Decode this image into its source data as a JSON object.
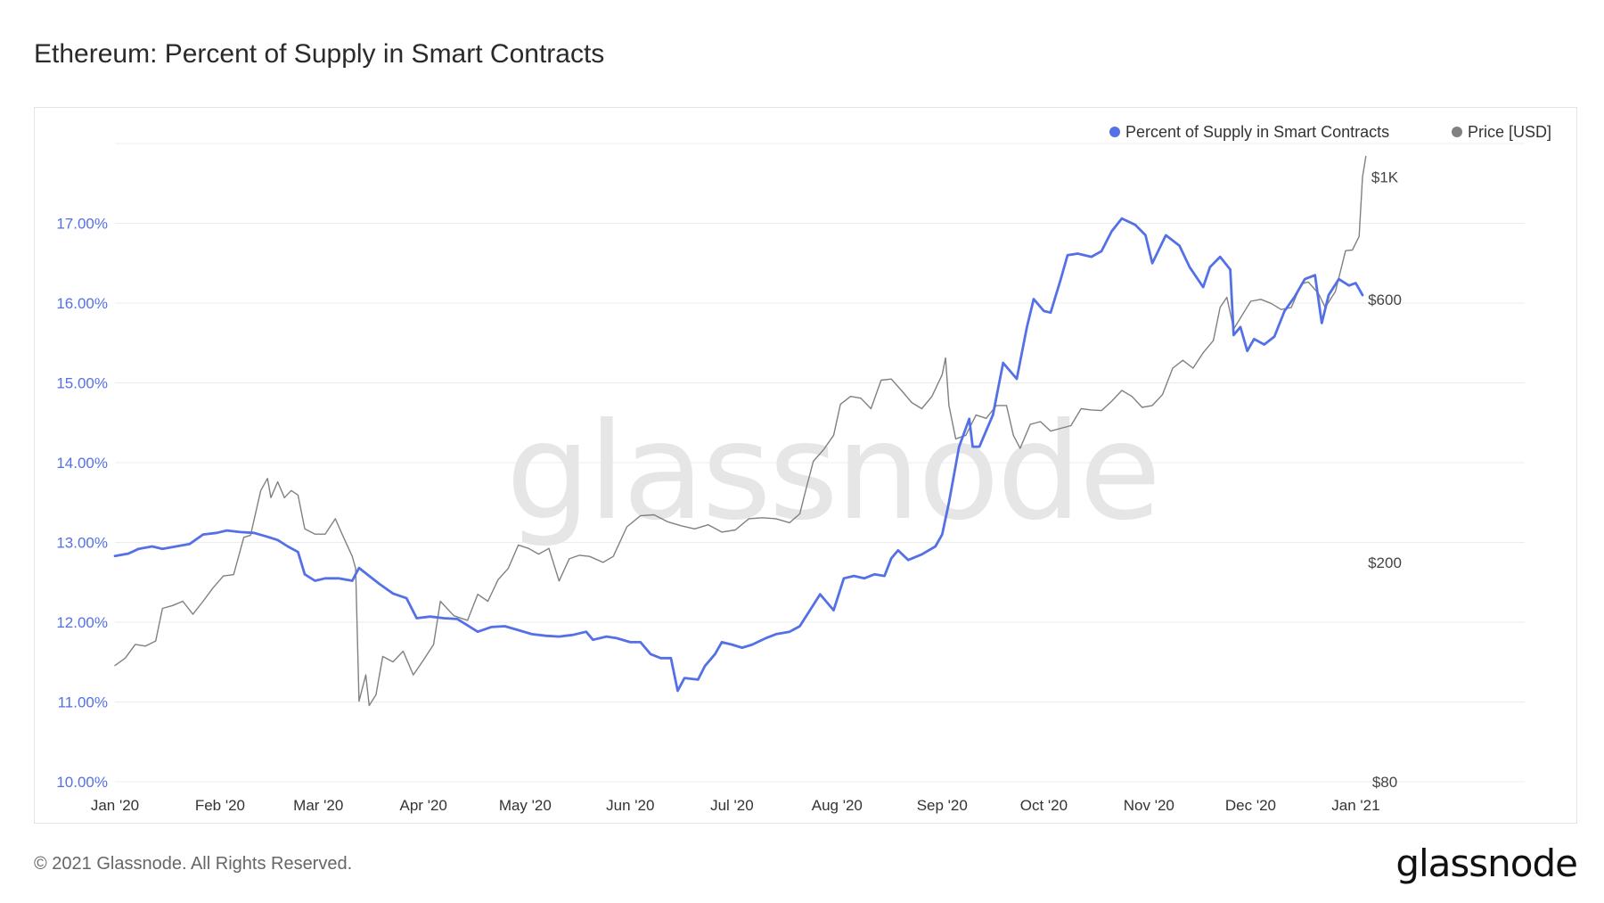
{
  "title": "Ethereum: Percent of Supply in Smart Contracts",
  "footer": "© 2021 Glassnode. All Rights Reserved.",
  "brand": "glassnode",
  "watermark": "glassnode",
  "colors": {
    "series_percent": "#5470e6",
    "series_price": "#808080"
  },
  "chart_data": {
    "type": "line",
    "title": "Ethereum: Percent of Supply in Smart Contracts",
    "legend": {
      "placement": "top-right"
    },
    "grid": true,
    "x_tick_labels": [
      "Jan '20",
      "Feb '20",
      "Mar '20",
      "Apr '20",
      "May '20",
      "Jun '20",
      "Jul '20",
      "Aug '20",
      "Sep '20",
      "Oct '20",
      "Nov '20",
      "Dec '20",
      "Jan '21"
    ],
    "x_tick_dates": [
      "2020-01-01",
      "2020-02-01",
      "2020-03-01",
      "2020-04-01",
      "2020-05-01",
      "2020-06-01",
      "2020-07-01",
      "2020-08-01",
      "2020-09-01",
      "2020-10-01",
      "2020-11-01",
      "2020-12-01",
      "2021-01-01"
    ],
    "y_left": {
      "ylim": [
        10,
        18
      ],
      "tick_values": [
        10,
        11,
        12,
        13,
        14,
        15,
        16,
        17
      ],
      "tick_labels": [
        "10.00%",
        "11.00%",
        "12.00%",
        "13.00%",
        "14.00%",
        "15.00%",
        "16.00%",
        "17.00%"
      ]
    },
    "y_right": {
      "scale": "log",
      "ylim": [
        80,
        1150
      ],
      "tick_values": [
        80,
        200,
        600,
        1000
      ],
      "tick_labels": [
        "$80",
        "$200",
        "$600",
        "$1K"
      ]
    },
    "x_range": [
      "2020-01-01",
      "2021-01-03"
    ],
    "series": [
      {
        "name": "Percent of Supply in Smart Contracts",
        "axis": "left",
        "color": "#5470e6",
        "points": [
          [
            "2020-01-01",
            12.83
          ],
          [
            "2020-01-05",
            12.86
          ],
          [
            "2020-01-08",
            12.92
          ],
          [
            "2020-01-12",
            12.95
          ],
          [
            "2020-01-15",
            12.92
          ],
          [
            "2020-01-19",
            12.95
          ],
          [
            "2020-01-23",
            12.98
          ],
          [
            "2020-01-27",
            13.1
          ],
          [
            "2020-01-31",
            13.12
          ],
          [
            "2020-02-03",
            13.15
          ],
          [
            "2020-02-07",
            13.13
          ],
          [
            "2020-02-11",
            13.12
          ],
          [
            "2020-02-15",
            13.07
          ],
          [
            "2020-02-18",
            13.03
          ],
          [
            "2020-02-21",
            12.95
          ],
          [
            "2020-02-24",
            12.88
          ],
          [
            "2020-02-26",
            12.6
          ],
          [
            "2020-02-29",
            12.52
          ],
          [
            "2020-03-03",
            12.55
          ],
          [
            "2020-03-07",
            12.55
          ],
          [
            "2020-03-11",
            12.52
          ],
          [
            "2020-03-13",
            12.68
          ],
          [
            "2020-03-16",
            12.58
          ],
          [
            "2020-03-19",
            12.48
          ],
          [
            "2020-03-23",
            12.36
          ],
          [
            "2020-03-27",
            12.3
          ],
          [
            "2020-03-30",
            12.05
          ],
          [
            "2020-04-03",
            12.07
          ],
          [
            "2020-04-07",
            12.05
          ],
          [
            "2020-04-11",
            12.04
          ],
          [
            "2020-04-14",
            11.96
          ],
          [
            "2020-04-17",
            11.88
          ],
          [
            "2020-04-21",
            11.94
          ],
          [
            "2020-04-25",
            11.95
          ],
          [
            "2020-04-29",
            11.9
          ],
          [
            "2020-05-03",
            11.85
          ],
          [
            "2020-05-07",
            11.83
          ],
          [
            "2020-05-11",
            11.82
          ],
          [
            "2020-05-15",
            11.84
          ],
          [
            "2020-05-19",
            11.88
          ],
          [
            "2020-05-21",
            11.78
          ],
          [
            "2020-05-25",
            11.82
          ],
          [
            "2020-05-28",
            11.8
          ],
          [
            "2020-06-01",
            11.75
          ],
          [
            "2020-06-04",
            11.75
          ],
          [
            "2020-06-07",
            11.6
          ],
          [
            "2020-06-10",
            11.55
          ],
          [
            "2020-06-13",
            11.55
          ],
          [
            "2020-06-15",
            11.14
          ],
          [
            "2020-06-17",
            11.3
          ],
          [
            "2020-06-21",
            11.28
          ],
          [
            "2020-06-23",
            11.45
          ],
          [
            "2020-06-26",
            11.6
          ],
          [
            "2020-06-28",
            11.75
          ],
          [
            "2020-07-01",
            11.72
          ],
          [
            "2020-07-04",
            11.68
          ],
          [
            "2020-07-07",
            11.72
          ],
          [
            "2020-07-11",
            11.8
          ],
          [
            "2020-07-14",
            11.85
          ],
          [
            "2020-07-18",
            11.88
          ],
          [
            "2020-07-21",
            11.95
          ],
          [
            "2020-07-24",
            12.15
          ],
          [
            "2020-07-27",
            12.35
          ],
          [
            "2020-07-29",
            12.25
          ],
          [
            "2020-07-31",
            12.15
          ],
          [
            "2020-08-03",
            12.55
          ],
          [
            "2020-08-06",
            12.58
          ],
          [
            "2020-08-09",
            12.55
          ],
          [
            "2020-08-12",
            12.6
          ],
          [
            "2020-08-15",
            12.58
          ],
          [
            "2020-08-17",
            12.8
          ],
          [
            "2020-08-19",
            12.9
          ],
          [
            "2020-08-22",
            12.78
          ],
          [
            "2020-08-26",
            12.85
          ],
          [
            "2020-08-30",
            12.95
          ],
          [
            "2020-09-01",
            13.1
          ],
          [
            "2020-09-03",
            13.5
          ],
          [
            "2020-09-06",
            14.2
          ],
          [
            "2020-09-09",
            14.55
          ],
          [
            "2020-09-10",
            14.2
          ],
          [
            "2020-09-12",
            14.2
          ],
          [
            "2020-09-16",
            14.6
          ],
          [
            "2020-09-19",
            15.25
          ],
          [
            "2020-09-23",
            15.05
          ],
          [
            "2020-09-26",
            15.7
          ],
          [
            "2020-09-28",
            16.05
          ],
          [
            "2020-10-01",
            15.9
          ],
          [
            "2020-10-03",
            15.88
          ],
          [
            "2020-10-06",
            16.3
          ],
          [
            "2020-10-08",
            16.6
          ],
          [
            "2020-10-11",
            16.62
          ],
          [
            "2020-10-15",
            16.58
          ],
          [
            "2020-10-18",
            16.65
          ],
          [
            "2020-10-21",
            16.9
          ],
          [
            "2020-10-24",
            17.06
          ],
          [
            "2020-10-28",
            16.98
          ],
          [
            "2020-10-31",
            16.85
          ],
          [
            "2020-11-02",
            16.5
          ],
          [
            "2020-11-06",
            16.85
          ],
          [
            "2020-11-10",
            16.72
          ],
          [
            "2020-11-13",
            16.45
          ],
          [
            "2020-11-17",
            16.2
          ],
          [
            "2020-11-19",
            16.45
          ],
          [
            "2020-11-22",
            16.58
          ],
          [
            "2020-11-25",
            16.42
          ],
          [
            "2020-11-26",
            15.6
          ],
          [
            "2020-11-28",
            15.7
          ],
          [
            "2020-11-30",
            15.4
          ],
          [
            "2020-12-02",
            15.55
          ],
          [
            "2020-12-05",
            15.48
          ],
          [
            "2020-12-08",
            15.58
          ],
          [
            "2020-12-11",
            15.9
          ],
          [
            "2020-12-14",
            16.08
          ],
          [
            "2020-12-17",
            16.3
          ],
          [
            "2020-12-20",
            16.35
          ],
          [
            "2020-12-22",
            15.75
          ],
          [
            "2020-12-24",
            16.1
          ],
          [
            "2020-12-27",
            16.3
          ],
          [
            "2020-12-30",
            16.22
          ],
          [
            "2021-01-01",
            16.25
          ],
          [
            "2021-01-03",
            16.1
          ]
        ]
      },
      {
        "name": "Price [USD]",
        "axis": "right",
        "color": "#808080",
        "points": [
          [
            "2020-01-01",
            130
          ],
          [
            "2020-01-04",
            134
          ],
          [
            "2020-01-07",
            142
          ],
          [
            "2020-01-10",
            141
          ],
          [
            "2020-01-13",
            144
          ],
          [
            "2020-01-15",
            165
          ],
          [
            "2020-01-18",
            167
          ],
          [
            "2020-01-21",
            170
          ],
          [
            "2020-01-24",
            161
          ],
          [
            "2020-01-27",
            170
          ],
          [
            "2020-01-30",
            180
          ],
          [
            "2020-02-02",
            189
          ],
          [
            "2020-02-05",
            190
          ],
          [
            "2020-02-08",
            222
          ],
          [
            "2020-02-10",
            224
          ],
          [
            "2020-02-13",
            270
          ],
          [
            "2020-02-15",
            284
          ],
          [
            "2020-02-16",
            262
          ],
          [
            "2020-02-18",
            280
          ],
          [
            "2020-02-20",
            262
          ],
          [
            "2020-02-22",
            270
          ],
          [
            "2020-02-24",
            265
          ],
          [
            "2020-02-26",
            230
          ],
          [
            "2020-02-29",
            225
          ],
          [
            "2020-03-03",
            225
          ],
          [
            "2020-03-06",
            240
          ],
          [
            "2020-03-08",
            225
          ],
          [
            "2020-03-11",
            205
          ],
          [
            "2020-03-12",
            195
          ],
          [
            "2020-03-13",
            112
          ],
          [
            "2020-03-15",
            125
          ],
          [
            "2020-03-16",
            110
          ],
          [
            "2020-03-18",
            115
          ],
          [
            "2020-03-20",
            135
          ],
          [
            "2020-03-23",
            132
          ],
          [
            "2020-03-26",
            138
          ],
          [
            "2020-03-29",
            125
          ],
          [
            "2020-04-01",
            133
          ],
          [
            "2020-04-04",
            142
          ],
          [
            "2020-04-06",
            170
          ],
          [
            "2020-04-10",
            160
          ],
          [
            "2020-04-14",
            157
          ],
          [
            "2020-04-17",
            175
          ],
          [
            "2020-04-20",
            170
          ],
          [
            "2020-04-23",
            186
          ],
          [
            "2020-04-26",
            195
          ],
          [
            "2020-04-29",
            215
          ],
          [
            "2020-05-02",
            212
          ],
          [
            "2020-05-05",
            207
          ],
          [
            "2020-05-08",
            212
          ],
          [
            "2020-05-11",
            185
          ],
          [
            "2020-05-14",
            203
          ],
          [
            "2020-05-17",
            206
          ],
          [
            "2020-05-20",
            205
          ],
          [
            "2020-05-24",
            200
          ],
          [
            "2020-05-27",
            205
          ],
          [
            "2020-05-31",
            232
          ],
          [
            "2020-06-04",
            243
          ],
          [
            "2020-06-08",
            244
          ],
          [
            "2020-06-12",
            237
          ],
          [
            "2020-06-16",
            233
          ],
          [
            "2020-06-20",
            230
          ],
          [
            "2020-06-24",
            234
          ],
          [
            "2020-06-28",
            227
          ],
          [
            "2020-07-02",
            229
          ],
          [
            "2020-07-06",
            240
          ],
          [
            "2020-07-10",
            241
          ],
          [
            "2020-07-14",
            240
          ],
          [
            "2020-07-18",
            236
          ],
          [
            "2020-07-21",
            245
          ],
          [
            "2020-07-23",
            274
          ],
          [
            "2020-07-25",
            305
          ],
          [
            "2020-07-28",
            320
          ],
          [
            "2020-07-31",
            340
          ],
          [
            "2020-08-02",
            387
          ],
          [
            "2020-08-05",
            400
          ],
          [
            "2020-08-08",
            397
          ],
          [
            "2020-08-11",
            380
          ],
          [
            "2020-08-14",
            428
          ],
          [
            "2020-08-17",
            430
          ],
          [
            "2020-08-20",
            410
          ],
          [
            "2020-08-23",
            390
          ],
          [
            "2020-08-26",
            380
          ],
          [
            "2020-08-29",
            400
          ],
          [
            "2020-09-01",
            438
          ],
          [
            "2020-09-02",
            470
          ],
          [
            "2020-09-03",
            385
          ],
          [
            "2020-09-05",
            335
          ],
          [
            "2020-09-08",
            340
          ],
          [
            "2020-09-11",
            370
          ],
          [
            "2020-09-14",
            365
          ],
          [
            "2020-09-17",
            385
          ],
          [
            "2020-09-20",
            385
          ],
          [
            "2020-09-22",
            340
          ],
          [
            "2020-09-24",
            322
          ],
          [
            "2020-09-27",
            356
          ],
          [
            "2020-09-30",
            360
          ],
          [
            "2020-10-03",
            346
          ],
          [
            "2020-10-06",
            350
          ],
          [
            "2020-10-09",
            354
          ],
          [
            "2020-10-12",
            380
          ],
          [
            "2020-10-15",
            378
          ],
          [
            "2020-10-18",
            377
          ],
          [
            "2020-10-21",
            392
          ],
          [
            "2020-10-24",
            410
          ],
          [
            "2020-10-27",
            400
          ],
          [
            "2020-10-30",
            382
          ],
          [
            "2020-11-02",
            385
          ],
          [
            "2020-11-05",
            403
          ],
          [
            "2020-11-08",
            450
          ],
          [
            "2020-11-11",
            465
          ],
          [
            "2020-11-14",
            450
          ],
          [
            "2020-11-17",
            480
          ],
          [
            "2020-11-20",
            505
          ],
          [
            "2020-11-22",
            580
          ],
          [
            "2020-11-24",
            605
          ],
          [
            "2020-11-26",
            530
          ],
          [
            "2020-11-28",
            555
          ],
          [
            "2020-12-01",
            595
          ],
          [
            "2020-12-04",
            600
          ],
          [
            "2020-12-07",
            590
          ],
          [
            "2020-12-10",
            575
          ],
          [
            "2020-12-13",
            580
          ],
          [
            "2020-12-16",
            640
          ],
          [
            "2020-12-18",
            645
          ],
          [
            "2020-12-21",
            615
          ],
          [
            "2020-12-23",
            580
          ],
          [
            "2020-12-26",
            620
          ],
          [
            "2020-12-29",
            735
          ],
          [
            "2020-12-31",
            737
          ],
          [
            "2021-01-02",
            780
          ],
          [
            "2021-01-03",
            1000
          ],
          [
            "2021-01-04",
            1090
          ]
        ]
      }
    ]
  },
  "legend": [
    {
      "label": "Percent of Supply in Smart Contracts",
      "color": "#5470e6"
    },
    {
      "label": "Price [USD]",
      "color": "#808080"
    }
  ]
}
